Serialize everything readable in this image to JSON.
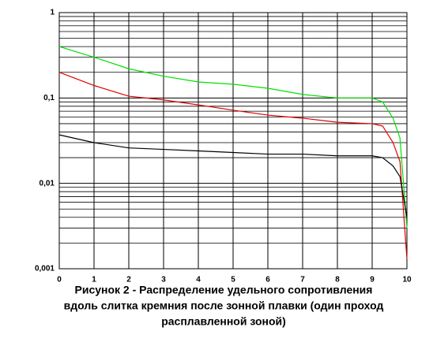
{
  "chart_data": {
    "type": "line",
    "title": [
      "Рисунок 2 - Распределение удельного сопротивления",
      "вдоль слитка кремния после зонной плавки (один проход",
      "расплавленной зоной)"
    ],
    "x": [
      0,
      1,
      2,
      3,
      4,
      5,
      6,
      7,
      8,
      9,
      9.3,
      9.6,
      9.8,
      10
    ],
    "series": [
      {
        "color": "#00e000",
        "values": [
          0.4,
          0.3,
          0.22,
          0.18,
          0.154,
          0.145,
          0.13,
          0.11,
          0.1,
          0.1,
          0.09,
          0.058,
          0.034,
          0.003
        ]
      },
      {
        "color": "#e00000",
        "values": [
          0.2,
          0.14,
          0.105,
          0.095,
          0.083,
          0.072,
          0.063,
          0.058,
          0.052,
          0.05,
          0.047,
          0.03,
          0.018,
          0.0013
        ]
      },
      {
        "color": "#000000",
        "values": [
          0.037,
          0.03,
          0.026,
          0.025,
          0.024,
          0.023,
          0.022,
          0.022,
          0.021,
          0.021,
          0.02,
          0.016,
          0.012,
          0.004
        ]
      }
    ],
    "xlim": [
      0,
      10
    ],
    "xticks": [
      0,
      1,
      2,
      3,
      4,
      5,
      6,
      7,
      8,
      9,
      10
    ],
    "ylim": [
      0.001,
      1
    ],
    "log_y": true,
    "yticks": [
      {
        "value": 0.001,
        "label": "0,001"
      },
      {
        "value": 0.01,
        "label": "0,01"
      },
      {
        "value": 0.1,
        "label": "0,1"
      },
      1
    ],
    "yminor": [
      0.002,
      0.003,
      0.004,
      0.005,
      0.006,
      0.007,
      0.008,
      0.009,
      0.02,
      0.03,
      0.04,
      0.05,
      0.06,
      0.07,
      0.08,
      0.09,
      0.2,
      0.3,
      0.4,
      0.5,
      0.6,
      0.7,
      0.8,
      0.9
    ],
    "grid": true
  }
}
